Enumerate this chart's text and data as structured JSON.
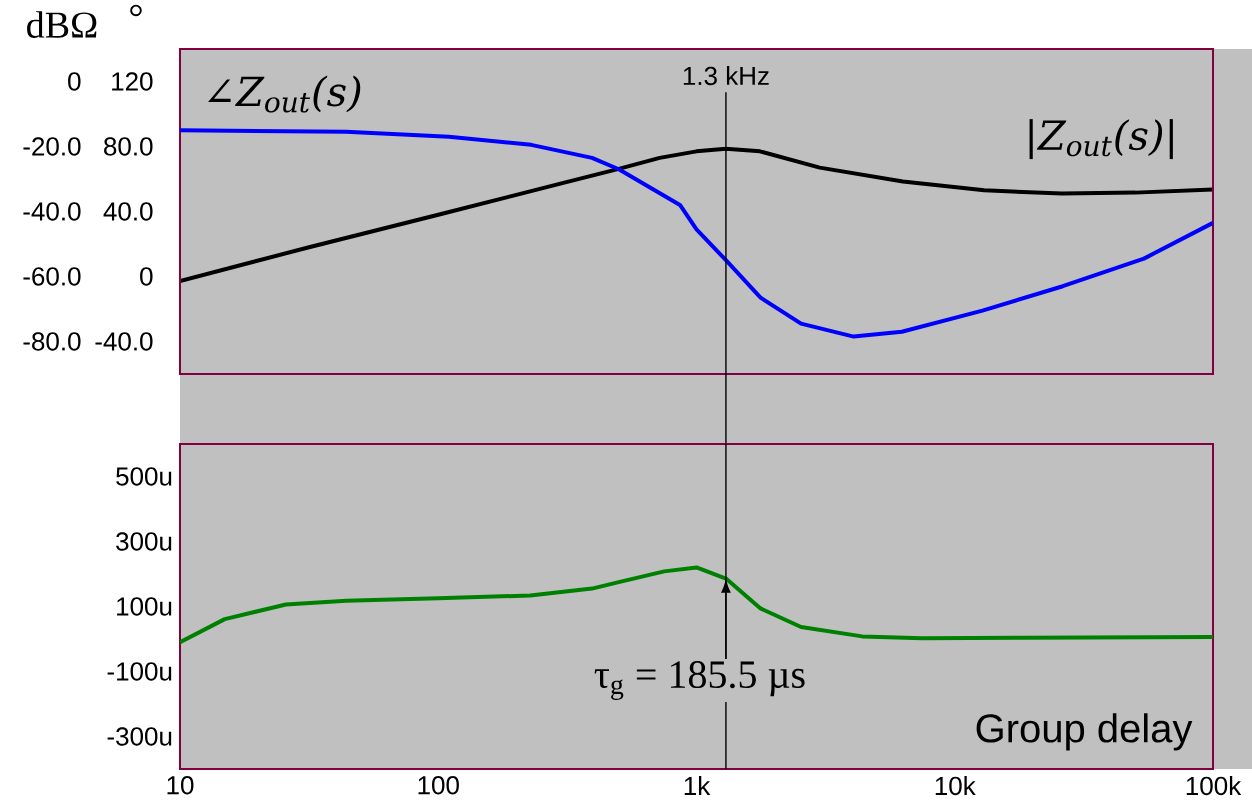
{
  "chart_data": [
    {
      "type": "line",
      "ylabel": "dBΩ",
      "y2label": "°",
      "log": "x",
      "xlim": [
        10,
        100000
      ],
      "ylim": [
        -90,
        10
      ],
      "yticks": [
        0,
        {
          "value": -20,
          "label": "-20.0"
        },
        {
          "value": -40,
          "label": "-40.0"
        },
        {
          "value": -60,
          "label": "-60.0"
        },
        {
          "value": -80,
          "label": "-80.0"
        }
      ],
      "y2lim": [
        -60,
        140
      ],
      "y2ticks": [
        120,
        {
          "value": 80,
          "label": "80.0"
        },
        {
          "value": 40,
          "label": "40.0"
        },
        0,
        {
          "value": -40,
          "label": "-40.0"
        }
      ],
      "tick_labels": "y",
      "ref_lines": [
        {
          "axis": "x",
          "value": 1300,
          "label": "1.3 kHz"
        }
      ],
      "series": [
        {
          "name": "|Z$_{out}$(s)|",
          "color": "#000000",
          "x": [
            10,
            31.6,
            100,
            316,
            500,
            720,
            1000,
            1300,
            1760,
            3000,
            6300,
            13000,
            26000,
            50000,
            100000
          ],
          "values": [
            -61.4,
            -51,
            -41,
            -30.9,
            -26.9,
            -23.5,
            -21.5,
            -20.7,
            -21.5,
            -26.5,
            -30.8,
            -33.5,
            -34.5,
            -34.2,
            -33.2
          ]
        },
        {
          "name": "∠Z$_{out}$(s)",
          "color": "#0000ff",
          "axis": "y2",
          "x": [
            10,
            44,
            110,
            229,
            394,
            500,
            863,
            1000,
            1300,
            1770,
            2540,
            4060,
            6240,
            12800,
            26200,
            54000,
            100000
          ],
          "values": [
            90,
            89,
            86,
            81,
            73,
            66,
            44,
            29,
            10,
            -13,
            -29,
            -37,
            -34,
            -21,
            -6,
            11,
            33
          ]
        }
      ]
    },
    {
      "type": "line",
      "title": "Group delay",
      "log": "x",
      "xlim": [
        10,
        100000
      ],
      "xticks": [
        10,
        100,
        {
          "value": 1000,
          "label": "1k"
        },
        {
          "value": 10000,
          "label": "10k"
        },
        {
          "value": 100000,
          "label": "100k"
        }
      ],
      "ylim": [
        -400,
        600
      ],
      "yticks": [
        {
          "value": 500,
          "label": "500u"
        },
        {
          "value": 300,
          "label": "300u"
        },
        {
          "value": 100,
          "label": "100u"
        },
        {
          "value": -100,
          "label": "-100u"
        },
        {
          "value": -300,
          "label": "-300u"
        }
      ],
      "ref_lines": [
        {
          "axis": "x",
          "value": 1300
        }
      ],
      "annotations": [
        {
          "text": "τ$_{g}$ = 185.5 µs",
          "x": 1300,
          "y": 185.5
        }
      ],
      "series": [
        {
          "color": "#008000",
          "x": [
            10,
            14.9,
            25.7,
            44,
            100,
            227,
            394,
            500,
            750,
            1000,
            1300,
            1770,
            2540,
            4380,
            7470,
            18400,
            100000
          ],
          "values": [
            -10,
            61,
            106,
            118,
            125,
            134,
            155,
            175,
            208,
            220,
            186,
            94,
            37,
            8,
            2,
            4,
            6
          ]
        }
      ]
    }
  ]
}
